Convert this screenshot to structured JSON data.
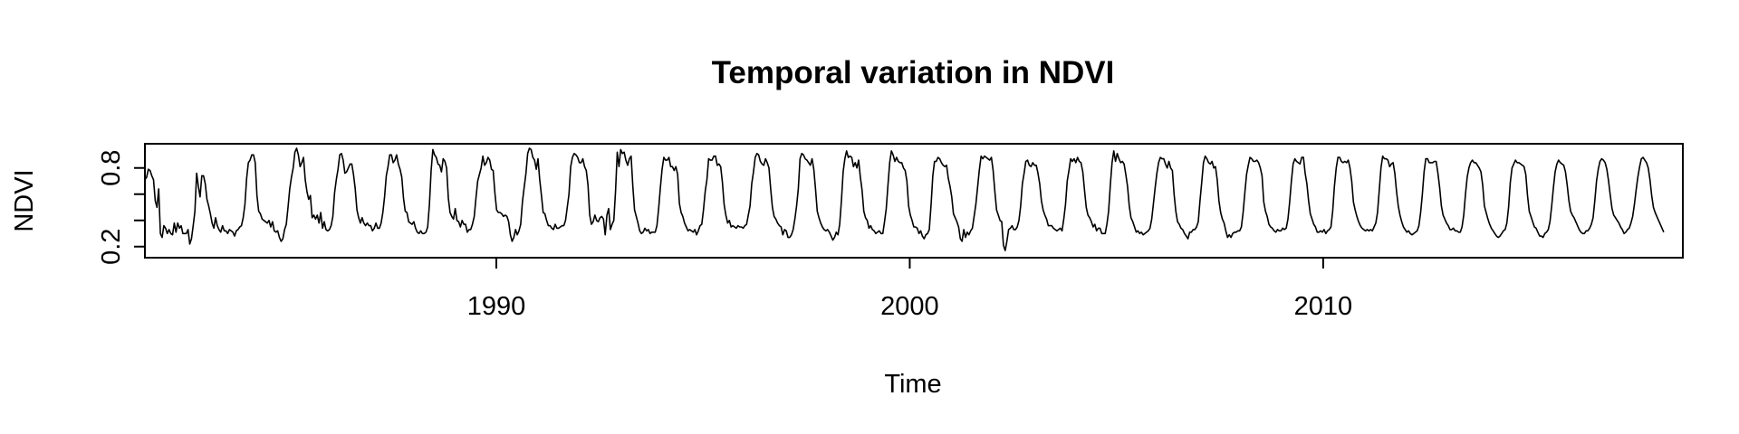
{
  "chart_data": {
    "type": "line",
    "title": "Temporal variation in NDVI",
    "xlabel": "Time",
    "ylabel": "NDVI",
    "xlim": [
      1981.5,
      2018.7
    ],
    "ylim": [
      0.15,
      0.95
    ],
    "x_ticks": [
      1990,
      2000,
      2010
    ],
    "x_tick_labels": [
      "1990",
      "2000",
      "2010"
    ],
    "y_ticks": [
      0.2,
      0.4,
      0.6,
      0.8
    ],
    "y_tick_labels": [
      "0.2",
      "",
      "",
      "0.8"
    ],
    "grid": false,
    "legend": "none",
    "series": [
      {
        "x_start": 1981.5,
        "x_step": 0.0417,
        "values": [
          0.71,
          0.73,
          0.79,
          0.78,
          0.74,
          0.71,
          0.55,
          0.5,
          0.64,
          0.3,
          0.27,
          0.36,
          0.34,
          0.3,
          0.33,
          0.3,
          0.29,
          0.38,
          0.31,
          0.38,
          0.34,
          0.36,
          0.3,
          0.3,
          0.3,
          0.33,
          0.22,
          0.26,
          0.36,
          0.47,
          0.76,
          0.66,
          0.58,
          0.74,
          0.74,
          0.68,
          0.56,
          0.51,
          0.45,
          0.38,
          0.34,
          0.42,
          0.36,
          0.33,
          0.31,
          0.36,
          0.32,
          0.32,
          0.3,
          0.33,
          0.32,
          0.31,
          0.28,
          0.32,
          0.33,
          0.35,
          0.36,
          0.42,
          0.52,
          0.72,
          0.84,
          0.86,
          0.9,
          0.9,
          0.84,
          0.59,
          0.47,
          0.45,
          0.41,
          0.4,
          0.39,
          0.38,
          0.4,
          0.35,
          0.39,
          0.32,
          0.31,
          0.32,
          0.27,
          0.24,
          0.26,
          0.33,
          0.37,
          0.5,
          0.64,
          0.73,
          0.8,
          0.92,
          0.95,
          0.9,
          0.81,
          0.84,
          0.88,
          0.71,
          0.62,
          0.56,
          0.59,
          0.42,
          0.44,
          0.41,
          0.44,
          0.38,
          0.46,
          0.34,
          0.39,
          0.33,
          0.32,
          0.33,
          0.36,
          0.43,
          0.61,
          0.71,
          0.79,
          0.9,
          0.91,
          0.86,
          0.76,
          0.77,
          0.8,
          0.83,
          0.83,
          0.75,
          0.64,
          0.48,
          0.42,
          0.38,
          0.42,
          0.38,
          0.36,
          0.38,
          0.36,
          0.36,
          0.32,
          0.34,
          0.38,
          0.34,
          0.34,
          0.38,
          0.46,
          0.58,
          0.74,
          0.81,
          0.9,
          0.9,
          0.84,
          0.86,
          0.9,
          0.83,
          0.79,
          0.73,
          0.57,
          0.47,
          0.46,
          0.39,
          0.38,
          0.37,
          0.39,
          0.34,
          0.31,
          0.3,
          0.32,
          0.3,
          0.3,
          0.31,
          0.35,
          0.52,
          0.78,
          0.94,
          0.9,
          0.88,
          0.83,
          0.82,
          0.77,
          0.87,
          0.85,
          0.8,
          0.57,
          0.46,
          0.43,
          0.41,
          0.49,
          0.4,
          0.39,
          0.35,
          0.4,
          0.37,
          0.37,
          0.31,
          0.33,
          0.33,
          0.37,
          0.43,
          0.57,
          0.7,
          0.75,
          0.8,
          0.89,
          0.82,
          0.84,
          0.88,
          0.86,
          0.79,
          0.78,
          0.61,
          0.48,
          0.46,
          0.46,
          0.45,
          0.43,
          0.44,
          0.43,
          0.39,
          0.29,
          0.24,
          0.27,
          0.33,
          0.29,
          0.32,
          0.37,
          0.54,
          0.65,
          0.76,
          0.91,
          0.95,
          0.94,
          0.88,
          0.86,
          0.79,
          0.87,
          0.71,
          0.59,
          0.46,
          0.45,
          0.4,
          0.36,
          0.36,
          0.34,
          0.33,
          0.37,
          0.34,
          0.34,
          0.35,
          0.36,
          0.36,
          0.4,
          0.5,
          0.6,
          0.81,
          0.88,
          0.91,
          0.9,
          0.88,
          0.84,
          0.84,
          0.87,
          0.81,
          0.78,
          0.67,
          0.44,
          0.37,
          0.39,
          0.44,
          0.4,
          0.39,
          0.42,
          0.43,
          0.41,
          0.29,
          0.44,
          0.49,
          0.33,
          0.37,
          0.4,
          0.62,
          0.92,
          0.81,
          0.94,
          0.91,
          0.92,
          0.86,
          0.82,
          0.87,
          0.89,
          0.66,
          0.48,
          0.43,
          0.38,
          0.32,
          0.3,
          0.31,
          0.34,
          0.32,
          0.33,
          0.3,
          0.31,
          0.31,
          0.31,
          0.36,
          0.49,
          0.65,
          0.79,
          0.88,
          0.86,
          0.86,
          0.88,
          0.81,
          0.81,
          0.78,
          0.81,
          0.75,
          0.53,
          0.46,
          0.43,
          0.38,
          0.35,
          0.32,
          0.33,
          0.32,
          0.31,
          0.33,
          0.29,
          0.32,
          0.36,
          0.37,
          0.48,
          0.62,
          0.71,
          0.87,
          0.86,
          0.86,
          0.89,
          0.89,
          0.82,
          0.83,
          0.81,
          0.69,
          0.52,
          0.44,
          0.38,
          0.4,
          0.35,
          0.36,
          0.35,
          0.34,
          0.36,
          0.35,
          0.35,
          0.34,
          0.36,
          0.37,
          0.44,
          0.51,
          0.68,
          0.77,
          0.88,
          0.91,
          0.9,
          0.85,
          0.83,
          0.82,
          0.87,
          0.84,
          0.8,
          0.64,
          0.5,
          0.43,
          0.41,
          0.38,
          0.36,
          0.35,
          0.29,
          0.33,
          0.32,
          0.27,
          0.27,
          0.29,
          0.33,
          0.41,
          0.51,
          0.64,
          0.87,
          0.91,
          0.9,
          0.87,
          0.86,
          0.84,
          0.82,
          0.87,
          0.79,
          0.64,
          0.47,
          0.42,
          0.38,
          0.35,
          0.33,
          0.32,
          0.33,
          0.31,
          0.28,
          0.25,
          0.27,
          0.31,
          0.29,
          0.37,
          0.55,
          0.77,
          0.87,
          0.93,
          0.88,
          0.89,
          0.88,
          0.81,
          0.84,
          0.8,
          0.86,
          0.73,
          0.63,
          0.47,
          0.42,
          0.4,
          0.34,
          0.36,
          0.33,
          0.32,
          0.3,
          0.31,
          0.32,
          0.3,
          0.3,
          0.39,
          0.49,
          0.67,
          0.84,
          0.93,
          0.9,
          0.85,
          0.88,
          0.85,
          0.84,
          0.84,
          0.8,
          0.78,
          0.7,
          0.51,
          0.44,
          0.4,
          0.35,
          0.35,
          0.34,
          0.3,
          0.32,
          0.28,
          0.26,
          0.29,
          0.3,
          0.33,
          0.52,
          0.74,
          0.85,
          0.85,
          0.88,
          0.87,
          0.84,
          0.82,
          0.81,
          0.82,
          0.72,
          0.66,
          0.58,
          0.45,
          0.42,
          0.39,
          0.35,
          0.26,
          0.24,
          0.33,
          0.27,
          0.31,
          0.29,
          0.32,
          0.34,
          0.43,
          0.52,
          0.65,
          0.78,
          0.89,
          0.87,
          0.89,
          0.88,
          0.87,
          0.86,
          0.88,
          0.78,
          0.62,
          0.48,
          0.44,
          0.4,
          0.39,
          0.21,
          0.17,
          0.24,
          0.33,
          0.34,
          0.36,
          0.33,
          0.33,
          0.35,
          0.4,
          0.51,
          0.68,
          0.76,
          0.85,
          0.86,
          0.82,
          0.81,
          0.84,
          0.82,
          0.82,
          0.76,
          0.68,
          0.55,
          0.48,
          0.44,
          0.41,
          0.36,
          0.36,
          0.36,
          0.34,
          0.33,
          0.32,
          0.33,
          0.34,
          0.32,
          0.41,
          0.52,
          0.7,
          0.78,
          0.87,
          0.85,
          0.87,
          0.84,
          0.88,
          0.85,
          0.84,
          0.77,
          0.63,
          0.5,
          0.44,
          0.42,
          0.39,
          0.35,
          0.37,
          0.32,
          0.34,
          0.34,
          0.3,
          0.3,
          0.3,
          0.37,
          0.47,
          0.67,
          0.84,
          0.93,
          0.85,
          0.91,
          0.87,
          0.84,
          0.85,
          0.83,
          0.75,
          0.66,
          0.51,
          0.42,
          0.39,
          0.35,
          0.31,
          0.32,
          0.3,
          0.31,
          0.29,
          0.3,
          0.31,
          0.32,
          0.34,
          0.41,
          0.53,
          0.65,
          0.76,
          0.84,
          0.88,
          0.87,
          0.87,
          0.83,
          0.8,
          0.85,
          0.8,
          0.78,
          0.6,
          0.47,
          0.39,
          0.37,
          0.34,
          0.33,
          0.3,
          0.28,
          0.26,
          0.31,
          0.31,
          0.33,
          0.33,
          0.35,
          0.39,
          0.55,
          0.69,
          0.84,
          0.89,
          0.87,
          0.84,
          0.83,
          0.85,
          0.8,
          0.81,
          0.71,
          0.55,
          0.46,
          0.41,
          0.38,
          0.32,
          0.27,
          0.29,
          0.27,
          0.3,
          0.31,
          0.31,
          0.32,
          0.32,
          0.35,
          0.46,
          0.61,
          0.75,
          0.82,
          0.88,
          0.87,
          0.85,
          0.85,
          0.86,
          0.84,
          0.8,
          0.74,
          0.54,
          0.47,
          0.43,
          0.37,
          0.35,
          0.34,
          0.32,
          0.31,
          0.33,
          0.32,
          0.32,
          0.34,
          0.33,
          0.34,
          0.41,
          0.54,
          0.7,
          0.83,
          0.87,
          0.85,
          0.84,
          0.83,
          0.88,
          0.88,
          0.76,
          0.68,
          0.55,
          0.45,
          0.41,
          0.37,
          0.35,
          0.31,
          0.31,
          0.32,
          0.31,
          0.33,
          0.3,
          0.32,
          0.33,
          0.35,
          0.47,
          0.66,
          0.8,
          0.88,
          0.88,
          0.85,
          0.84,
          0.85,
          0.84,
          0.86,
          0.8,
          0.7,
          0.54,
          0.48,
          0.43,
          0.39,
          0.36,
          0.34,
          0.33,
          0.32,
          0.33,
          0.32,
          0.33,
          0.32,
          0.35,
          0.38,
          0.46,
          0.63,
          0.8,
          0.89,
          0.87,
          0.87,
          0.86,
          0.81,
          0.83,
          0.84,
          0.76,
          0.62,
          0.51,
          0.44,
          0.39,
          0.35,
          0.33,
          0.31,
          0.32,
          0.3,
          0.29,
          0.3,
          0.31,
          0.32,
          0.36,
          0.46,
          0.6,
          0.77,
          0.87,
          0.87,
          0.84,
          0.84,
          0.84,
          0.85,
          0.85,
          0.76,
          0.65,
          0.51,
          0.44,
          0.41,
          0.38,
          0.36,
          0.33,
          0.33,
          0.34,
          0.32,
          0.32,
          0.31,
          0.31,
          0.35,
          0.44,
          0.6,
          0.73,
          0.8,
          0.84,
          0.86,
          0.84,
          0.84,
          0.82,
          0.8,
          0.77,
          0.67,
          0.51,
          0.46,
          0.41,
          0.37,
          0.34,
          0.32,
          0.3,
          0.28,
          0.27,
          0.28,
          0.3,
          0.32,
          0.33,
          0.38,
          0.5,
          0.69,
          0.8,
          0.83,
          0.86,
          0.84,
          0.84,
          0.83,
          0.82,
          0.81,
          0.75,
          0.59,
          0.47,
          0.43,
          0.39,
          0.35,
          0.34,
          0.31,
          0.28,
          0.28,
          0.27,
          0.3,
          0.31,
          0.33,
          0.39,
          0.51,
          0.65,
          0.77,
          0.83,
          0.86,
          0.84,
          0.83,
          0.82,
          0.77,
          0.67,
          0.55,
          0.47,
          0.44,
          0.42,
          0.39,
          0.36,
          0.33,
          0.31,
          0.3,
          0.3,
          0.32,
          0.32,
          0.34,
          0.37,
          0.42,
          0.55,
          0.7,
          0.79,
          0.85,
          0.87,
          0.86,
          0.84,
          0.79,
          0.7,
          0.59,
          0.49,
          0.44,
          0.42,
          0.4,
          0.38,
          0.35,
          0.33,
          0.3,
          0.31,
          0.33,
          0.34,
          0.38,
          0.43,
          0.52,
          0.63,
          0.73,
          0.81,
          0.87,
          0.88,
          0.86,
          0.84,
          0.8,
          0.71,
          0.59,
          0.5,
          0.46,
          0.43,
          0.4,
          0.37,
          0.34,
          0.31
        ]
      }
    ]
  }
}
